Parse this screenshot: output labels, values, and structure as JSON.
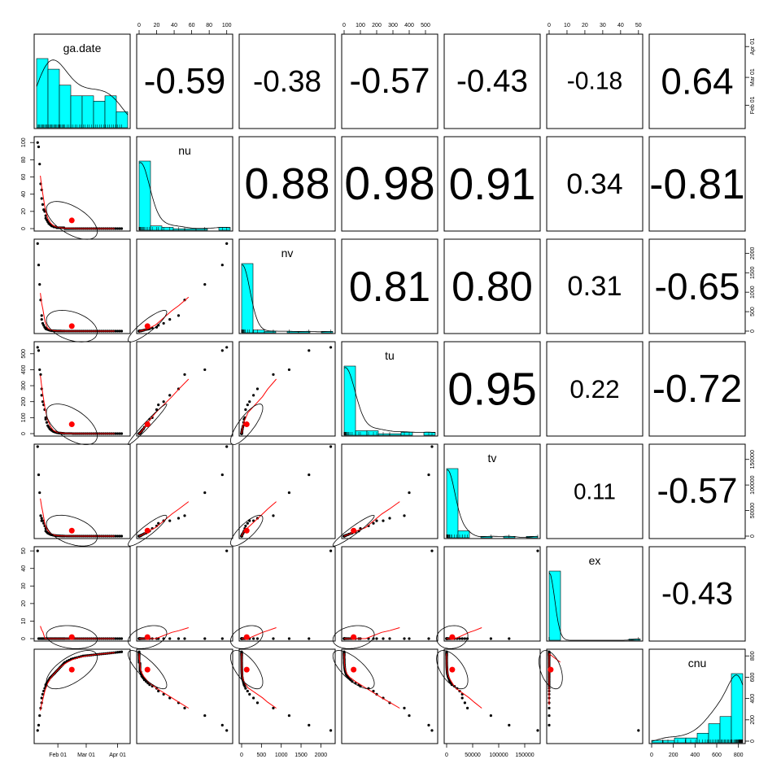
{
  "chart_data": {
    "type": "scatter",
    "variables": [
      "ga.date",
      "nu",
      "nv",
      "tu",
      "tv",
      "ex",
      "cnu"
    ],
    "correlations": [
      [
        null,
        -0.59,
        -0.38,
        -0.57,
        -0.43,
        -0.18,
        0.64
      ],
      [
        null,
        null,
        0.88,
        0.98,
        0.91,
        0.34,
        -0.81
      ],
      [
        null,
        null,
        null,
        0.81,
        0.8,
        0.31,
        -0.65
      ],
      [
        null,
        null,
        null,
        null,
        0.95,
        0.22,
        -0.72
      ],
      [
        null,
        null,
        null,
        null,
        null,
        0.11,
        -0.57
      ],
      [
        null,
        null,
        null,
        null,
        null,
        null,
        -0.43
      ]
    ],
    "correlation_labels": [
      [
        null,
        "-0.59",
        "-0.38",
        "-0.57",
        "-0.43",
        "-0.18",
        "0.64"
      ],
      [
        null,
        null,
        "0.88",
        "0.98",
        "0.91",
        "0.34",
        "-0.81"
      ],
      [
        null,
        null,
        null,
        "0.81",
        "0.80",
        "0.31",
        "-0.65"
      ],
      [
        null,
        null,
        null,
        null,
        "0.95",
        "0.22",
        "-0.72"
      ],
      [
        null,
        null,
        null,
        null,
        null,
        "0.11",
        "-0.57"
      ],
      [
        null,
        null,
        null,
        null,
        null,
        null,
        "-0.43"
      ]
    ],
    "ranges": [
      [
        0,
        90
      ],
      [
        0,
        104
      ],
      [
        0,
        2300
      ],
      [
        0,
        560
      ],
      [
        0,
        175000
      ],
      [
        0,
        51
      ],
      [
        0,
        840
      ]
    ],
    "axes": [
      {
        "var": "ga.date",
        "side": "bottom",
        "ticks": [
          [
            21,
            "Feb 01"
          ],
          [
            49,
            "Mar 01"
          ],
          [
            80,
            "Apr 01"
          ]
        ]
      },
      {
        "var": "ga.date",
        "side": "right",
        "ticks": [
          [
            21,
            "Feb 01"
          ],
          [
            49,
            "Mar 01"
          ],
          [
            80,
            "Apr 01"
          ]
        ]
      },
      {
        "var": "nu",
        "side": "top",
        "ticks": [
          [
            0,
            "0"
          ],
          [
            20,
            "20"
          ],
          [
            40,
            "40"
          ],
          [
            60,
            "60"
          ],
          [
            80,
            "80"
          ],
          [
            100,
            "100"
          ]
        ]
      },
      {
        "var": "nu",
        "side": "left",
        "ticks": [
          [
            0,
            "0"
          ],
          [
            20,
            "20"
          ],
          [
            40,
            "40"
          ],
          [
            60,
            "60"
          ],
          [
            80,
            "80"
          ],
          [
            100,
            "100"
          ]
        ]
      },
      {
        "var": "nv",
        "side": "bottom",
        "ticks": [
          [
            0,
            "0"
          ],
          [
            500,
            "500"
          ],
          [
            1000,
            "1000"
          ],
          [
            1500,
            "1500"
          ],
          [
            2000,
            "2000"
          ]
        ]
      },
      {
        "var": "nv",
        "side": "right",
        "ticks": [
          [
            0,
            "0"
          ],
          [
            500,
            "500"
          ],
          [
            1000,
            "1000"
          ],
          [
            1500,
            "1500"
          ],
          [
            2000,
            "2000"
          ]
        ]
      },
      {
        "var": "tu",
        "side": "top",
        "ticks": [
          [
            0,
            "0"
          ],
          [
            100,
            "100"
          ],
          [
            200,
            "200"
          ],
          [
            300,
            "300"
          ],
          [
            400,
            "400"
          ],
          [
            500,
            "500"
          ]
        ]
      },
      {
        "var": "tu",
        "side": "left",
        "ticks": [
          [
            0,
            "0"
          ],
          [
            100,
            "100"
          ],
          [
            200,
            "200"
          ],
          [
            300,
            "300"
          ],
          [
            400,
            "400"
          ],
          [
            500,
            "500"
          ]
        ]
      },
      {
        "var": "tv",
        "side": "bottom",
        "ticks": [
          [
            0,
            "0"
          ],
          [
            50000,
            "50000"
          ],
          [
            100000,
            "100000"
          ],
          [
            150000,
            "150000"
          ]
        ]
      },
      {
        "var": "tv",
        "side": "right",
        "ticks": [
          [
            0,
            "0"
          ],
          [
            50000,
            "50000"
          ],
          [
            100000,
            "100000"
          ],
          [
            150000,
            "150000"
          ]
        ]
      },
      {
        "var": "ex",
        "side": "top",
        "ticks": [
          [
            0,
            "0"
          ],
          [
            10,
            "10"
          ],
          [
            20,
            "20"
          ],
          [
            30,
            "30"
          ],
          [
            40,
            "40"
          ],
          [
            50,
            "50"
          ]
        ]
      },
      {
        "var": "ex",
        "side": "left",
        "ticks": [
          [
            0,
            "0"
          ],
          [
            10,
            "10"
          ],
          [
            20,
            "20"
          ],
          [
            30,
            "30"
          ],
          [
            40,
            "40"
          ],
          [
            50,
            "50"
          ]
        ]
      },
      {
        "var": "cnu",
        "side": "bottom",
        "ticks": [
          [
            0,
            "0"
          ],
          [
            200,
            "200"
          ],
          [
            400,
            "400"
          ],
          [
            600,
            "600"
          ],
          [
            800,
            "800"
          ]
        ]
      },
      {
        "var": "cnu",
        "side": "right",
        "ticks": [
          [
            0,
            "0"
          ],
          [
            200,
            "200"
          ],
          [
            400,
            "400"
          ],
          [
            600,
            "600"
          ],
          [
            800,
            "800"
          ]
        ]
      }
    ],
    "observations": {
      "ga.date": [
        1,
        2,
        3,
        4,
        5,
        5,
        6,
        7,
        8,
        9,
        9,
        10,
        11,
        12,
        13,
        14,
        15,
        16,
        17,
        18,
        19,
        20,
        21,
        22,
        23,
        24,
        25,
        26,
        27,
        28,
        30,
        32,
        34,
        36,
        38,
        40,
        42,
        44,
        46,
        48,
        50,
        52,
        54,
        56,
        58,
        60,
        62,
        64,
        66,
        68,
        70,
        72,
        74,
        76,
        78,
        80,
        82,
        84
      ],
      "nu": [
        100,
        95,
        75,
        52,
        45,
        35,
        28,
        22,
        20,
        15,
        12,
        10,
        8,
        6,
        5,
        4,
        3,
        3,
        2,
        2,
        2,
        1,
        1,
        1,
        1,
        1,
        1,
        1,
        1,
        0,
        0,
        0,
        0,
        0,
        0,
        0,
        0,
        0,
        0,
        0,
        0,
        0,
        0,
        0,
        0,
        0,
        0,
        0,
        0,
        0,
        0,
        0,
        0,
        0,
        0,
        0,
        0,
        0
      ],
      "nv": [
        2250,
        1700,
        1200,
        800,
        400,
        300,
        200,
        150,
        100,
        80,
        60,
        50,
        40,
        30,
        20,
        15,
        10,
        10,
        8,
        6,
        5,
        4,
        3,
        3,
        2,
        2,
        1,
        1,
        1,
        1,
        0,
        0,
        0,
        0,
        0,
        0,
        0,
        0,
        0,
        0,
        0,
        0,
        0,
        0,
        0,
        0,
        0,
        0,
        0,
        0,
        0,
        0,
        0,
        0,
        0,
        0,
        0,
        0
      ],
      "tu": [
        540,
        520,
        400,
        370,
        280,
        240,
        200,
        180,
        150,
        100,
        90,
        70,
        50,
        40,
        30,
        25,
        20,
        15,
        12,
        10,
        8,
        6,
        5,
        4,
        3,
        3,
        2,
        2,
        1,
        1,
        1,
        1,
        1,
        0,
        0,
        0,
        0,
        0,
        0,
        0,
        0,
        0,
        0,
        0,
        0,
        0,
        0,
        0,
        0,
        0,
        0,
        0,
        0,
        0,
        0,
        0,
        0,
        0
      ],
      "tv": [
        175000,
        120000,
        85000,
        40000,
        35000,
        30000,
        30000,
        25000,
        20000,
        15000,
        10000,
        8000,
        6000,
        5000,
        4000,
        3000,
        2500,
        2000,
        1500,
        1200,
        1000,
        800,
        600,
        500,
        400,
        300,
        200,
        150,
        100,
        100,
        50,
        50,
        0,
        0,
        0,
        0,
        0,
        0,
        0,
        0,
        0,
        0,
        0,
        0,
        0,
        0,
        0,
        0,
        0,
        0,
        0,
        0,
        0,
        0,
        0,
        0,
        0,
        0
      ],
      "ex": [
        50,
        0,
        0,
        0,
        0,
        0,
        0,
        0,
        0,
        0,
        0,
        0,
        0,
        0,
        0,
        0,
        0,
        0,
        0,
        0,
        0,
        0,
        0,
        0,
        0,
        0,
        0,
        0,
        0,
        0,
        0,
        0,
        0,
        0,
        0,
        0,
        0,
        0,
        0,
        0,
        0,
        0,
        0,
        0,
        0,
        0,
        0,
        0,
        0,
        0,
        0,
        0,
        0,
        0,
        0,
        0,
        0,
        0
      ],
      "cnu": [
        100,
        150,
        240,
        310,
        360,
        405,
        440,
        470,
        495,
        515,
        530,
        545,
        560,
        575,
        590,
        600,
        610,
        620,
        630,
        640,
        650,
        660,
        670,
        680,
        690,
        700,
        710,
        720,
        730,
        740,
        750,
        760,
        770,
        775,
        780,
        785,
        790,
        795,
        800,
        802,
        804,
        806,
        808,
        810,
        812,
        814,
        816,
        818,
        820,
        822,
        824,
        826,
        828,
        830,
        832,
        834,
        836,
        838
      ]
    }
  }
}
